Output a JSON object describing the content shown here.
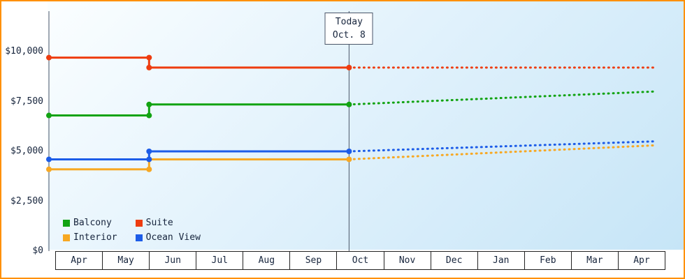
{
  "chart": {
    "today_box": {
      "line1": "Today",
      "line2": "Oct. 8"
    }
  },
  "chart_data": {
    "type": "line",
    "title": "",
    "xlabel": "",
    "ylabel": "",
    "x_categories": [
      "Apr",
      "May",
      "Jun",
      "Jul",
      "Aug",
      "Sep",
      "Oct",
      "Nov",
      "Dec",
      "Jan",
      "Feb",
      "Mar",
      "Apr"
    ],
    "ylim": [
      0,
      10000
    ],
    "y_tick_values": [
      0,
      2500,
      5000,
      7500,
      10000
    ],
    "y_tick_labels": [
      "$0",
      "$2,500",
      "$5,000",
      "$7,500",
      "$10,000"
    ],
    "grid": false,
    "legend_position": "bottom-left",
    "border_color": "#ff9000",
    "today": {
      "label_line1": "Today",
      "label_line2": "Oct. 8",
      "month_position": 6.26
    },
    "price_change_month_position": 2,
    "series": [
      {
        "name": "Balcony",
        "color": "#12a312",
        "initial": 6800,
        "current": 7350,
        "forecast_end": 8000
      },
      {
        "name": "Suite",
        "color": "#ee3c0f",
        "initial": 9700,
        "current": 9200,
        "forecast_end": 9200
      },
      {
        "name": "Interior",
        "color": "#f7a823",
        "initial": 4100,
        "current": 4600,
        "forecast_end": 5300
      },
      {
        "name": "Ocean View",
        "color": "#1c5ce8",
        "initial": 4600,
        "current": 5000,
        "forecast_end": 5500
      }
    ]
  }
}
